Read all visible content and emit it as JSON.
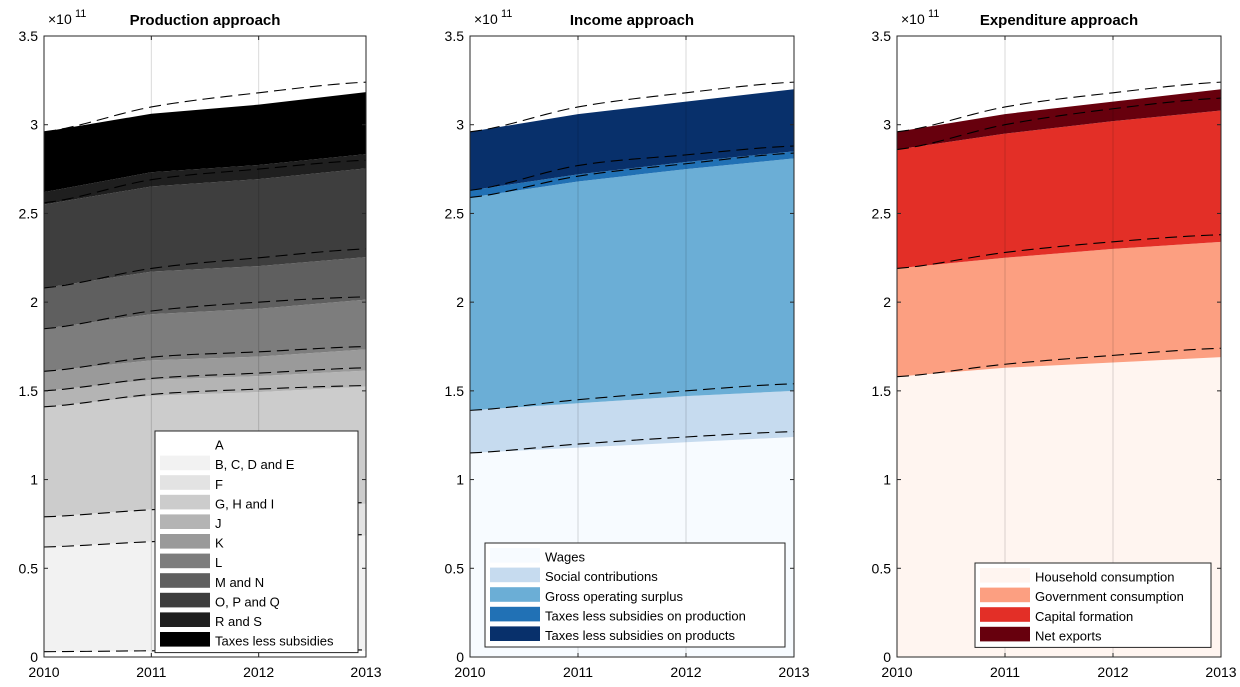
{
  "chart_data": [
    {
      "type": "area",
      "title": "Production approach",
      "xlabel": "",
      "ylabel": "",
      "exponent_base": "×10",
      "exponent_power": "11",
      "x": [
        2010,
        2011,
        2012,
        2013
      ],
      "xticks": [
        "2010",
        "2011",
        "2012",
        "2013"
      ],
      "xlim": [
        2010,
        2013
      ],
      "ylim": [
        0,
        350000000000
      ],
      "yticks": [
        0,
        50000000000,
        100000000000,
        150000000000,
        200000000000,
        250000000000,
        300000000000,
        350000000000
      ],
      "ytick_labels": [
        "0",
        "0.5",
        "1",
        "1.5",
        "2",
        "2.5",
        "3",
        "3.5"
      ],
      "grid": "x",
      "legend_position": "bottom-right",
      "series": [
        {
          "name": "A",
          "color": "#ffffff",
          "values": [
            3000000000,
            3200000000,
            3300000000,
            3400000000
          ]
        },
        {
          "name": "B, C, D and E",
          "color": "#f2f2f2",
          "values": [
            59000000000,
            62000000000,
            63000000000,
            65000000000
          ]
        },
        {
          "name": "F",
          "color": "#e3e3e3",
          "values": [
            17000000000,
            18000000000,
            18000000000,
            18000000000
          ]
        },
        {
          "name": "G, H and I",
          "color": "#cccccc",
          "values": [
            62000000000,
            64000000000,
            65000000000,
            66000000000
          ]
        },
        {
          "name": "J",
          "color": "#b4b4b4",
          "values": [
            9000000000,
            9000000000,
            9000000000,
            9000000000
          ]
        },
        {
          "name": "K",
          "color": "#9a9a9a",
          "values": [
            11000000000,
            11000000000,
            11000000000,
            12000000000
          ]
        },
        {
          "name": "L",
          "color": "#7d7d7d",
          "values": [
            24000000000,
            26000000000,
            27000000000,
            28000000000
          ]
        },
        {
          "name": "M and N",
          "color": "#5f5f5f",
          "values": [
            23000000000,
            24000000000,
            24000000000,
            24000000000
          ]
        },
        {
          "name": "O, P and Q",
          "color": "#3e3e3e",
          "values": [
            47000000000,
            48000000000,
            49000000000,
            50000000000
          ]
        },
        {
          "name": "R and S",
          "color": "#1f1f1f",
          "values": [
            7000000000,
            8000000000,
            8000000000,
            8000000000
          ]
        },
        {
          "name": "Taxes less subsidies",
          "color": "#000000",
          "values": [
            34000000000,
            33000000000,
            34000000000,
            35000000000
          ]
        }
      ],
      "dashed_lines": [
        [
          3000000000,
          3500000000,
          3800000000,
          4000000000
        ],
        [
          62000000000,
          65000000000,
          67000000000,
          69000000000
        ],
        [
          79000000000,
          83000000000,
          85000000000,
          87000000000
        ],
        [
          141000000000,
          148000000000,
          151000000000,
          153000000000
        ],
        [
          150000000000,
          157000000000,
          160000000000,
          163000000000
        ],
        [
          161000000000,
          169000000000,
          172000000000,
          175000000000
        ],
        [
          185000000000,
          195000000000,
          200000000000,
          203000000000
        ],
        [
          208000000000,
          219000000000,
          225000000000,
          230000000000
        ],
        [
          256000000000,
          269000000000,
          275000000000,
          280000000000
        ],
        [
          263000000000,
          276000000000,
          282000000000,
          287000000000
        ],
        [
          296000000000,
          310000000000,
          318000000000,
          324000000000
        ]
      ]
    },
    {
      "type": "area",
      "title": "Income approach",
      "xlabel": "",
      "ylabel": "",
      "exponent_base": "×10",
      "exponent_power": "11",
      "x": [
        2010,
        2011,
        2012,
        2013
      ],
      "xticks": [
        "2010",
        "2011",
        "2012",
        "2013"
      ],
      "xlim": [
        2010,
        2013
      ],
      "ylim": [
        0,
        350000000000
      ],
      "yticks": [
        0,
        50000000000,
        100000000000,
        150000000000,
        200000000000,
        250000000000,
        300000000000,
        350000000000
      ],
      "ytick_labels": [
        "0",
        "0.5",
        "1",
        "1.5",
        "2",
        "2.5",
        "3",
        "3.5"
      ],
      "grid": "x",
      "legend_position": "bottom-right",
      "series": [
        {
          "name": "Wages",
          "color": "#f7fbff",
          "values": [
            115000000000,
            118000000000,
            121000000000,
            124000000000
          ]
        },
        {
          "name": "Social contributions",
          "color": "#c6dbef",
          "values": [
            24000000000,
            25000000000,
            26000000000,
            26000000000
          ]
        },
        {
          "name": "Gross operating surplus",
          "color": "#6baed6",
          "values": [
            120000000000,
            125000000000,
            128000000000,
            131000000000
          ]
        },
        {
          "name": "Taxes less subsidies on production",
          "color": "#2171b5",
          "values": [
            4000000000,
            4000000000,
            4000000000,
            4000000000
          ]
        },
        {
          "name": "Taxes less subsidies on products",
          "color": "#08306b",
          "values": [
            33000000000,
            34000000000,
            34000000000,
            35000000000
          ]
        }
      ],
      "dashed_lines": [
        [
          115000000000,
          120000000000,
          124000000000,
          127000000000
        ],
        [
          139000000000,
          145000000000,
          150000000000,
          154000000000
        ],
        [
          259000000000,
          271000000000,
          278000000000,
          284000000000
        ],
        [
          263000000000,
          277000000000,
          283000000000,
          288000000000
        ],
        [
          296000000000,
          310000000000,
          318000000000,
          324000000000
        ]
      ]
    },
    {
      "type": "area",
      "title": "Expenditure approach",
      "xlabel": "",
      "ylabel": "",
      "exponent_base": "×10",
      "exponent_power": "11",
      "x": [
        2010,
        2011,
        2012,
        2013
      ],
      "xticks": [
        "2010",
        "2011",
        "2012",
        "2013"
      ],
      "xlim": [
        2010,
        2013
      ],
      "ylim": [
        0,
        350000000000
      ],
      "yticks": [
        0,
        50000000000,
        100000000000,
        150000000000,
        200000000000,
        250000000000,
        300000000000,
        350000000000
      ],
      "ytick_labels": [
        "0",
        "0.5",
        "1",
        "1.5",
        "2",
        "2.5",
        "3",
        "3.5"
      ],
      "grid": "x",
      "legend_position": "bottom-right",
      "series": [
        {
          "name": "Household consumption",
          "color": "#fff5f0",
          "values": [
            158000000000,
            163000000000,
            166000000000,
            169000000000
          ]
        },
        {
          "name": "Government consumption",
          "color": "#fc9f81",
          "values": [
            61000000000,
            62000000000,
            64000000000,
            65000000000
          ]
        },
        {
          "name": "Capital formation",
          "color": "#e32f27",
          "values": [
            67000000000,
            70000000000,
            72000000000,
            74000000000
          ]
        },
        {
          "name": "Net exports",
          "color": "#67000d",
          "values": [
            10000000000,
            11000000000,
            11000000000,
            12000000000
          ]
        }
      ],
      "dashed_lines": [
        [
          158000000000,
          165000000000,
          170000000000,
          174000000000
        ],
        [
          219000000000,
          228000000000,
          234000000000,
          238000000000
        ],
        [
          286000000000,
          300000000000,
          309000000000,
          315000000000
        ],
        [
          296000000000,
          310000000000,
          318000000000,
          324000000000
        ]
      ]
    }
  ]
}
